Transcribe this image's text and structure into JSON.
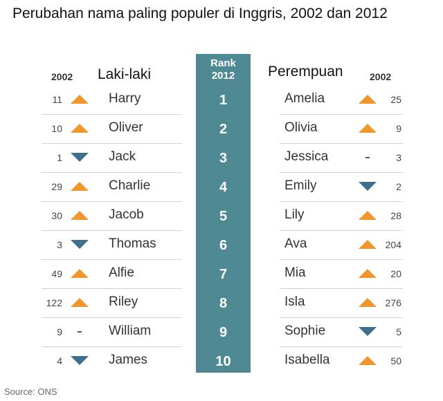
{
  "title": "Perubahan nama paling populer di Inggris, 2002 dan 2012",
  "headers": {
    "boys_year": "2002",
    "boys_label": "Laki-laki",
    "rank_line1": "Rank",
    "rank_line2": "2012",
    "girls_label": "Perempuan",
    "girls_year": "2002"
  },
  "colors": {
    "up": "#f0962e",
    "down": "#3e6f8e",
    "rank_bg": "#4f8993"
  },
  "chart_data": {
    "type": "table",
    "title": "Perubahan nama paling populer di Inggris, 2002 dan 2012",
    "ranks": [
      "1",
      "2",
      "3",
      "4",
      "5",
      "6",
      "7",
      "8",
      "9",
      "10"
    ],
    "boys": [
      {
        "name": "Harry",
        "rank_2002": "11",
        "trend": "up"
      },
      {
        "name": "Oliver",
        "rank_2002": "10",
        "trend": "up"
      },
      {
        "name": "Jack",
        "rank_2002": "1",
        "trend": "down"
      },
      {
        "name": "Charlie",
        "rank_2002": "29",
        "trend": "up"
      },
      {
        "name": "Jacob",
        "rank_2002": "30",
        "trend": "up"
      },
      {
        "name": "Thomas",
        "rank_2002": "3",
        "trend": "down"
      },
      {
        "name": "Alfie",
        "rank_2002": "49",
        "trend": "up"
      },
      {
        "name": "Riley",
        "rank_2002": "122",
        "trend": "up"
      },
      {
        "name": "William",
        "rank_2002": "9",
        "trend": "same"
      },
      {
        "name": "James",
        "rank_2002": "4",
        "trend": "down"
      }
    ],
    "girls": [
      {
        "name": "Amelia",
        "rank_2002": "25",
        "trend": "up"
      },
      {
        "name": "Olivia",
        "rank_2002": "9",
        "trend": "up"
      },
      {
        "name": "Jessica",
        "rank_2002": "3",
        "trend": "same"
      },
      {
        "name": "Emily",
        "rank_2002": "2",
        "trend": "down"
      },
      {
        "name": "Lily",
        "rank_2002": "28",
        "trend": "up"
      },
      {
        "name": "Ava",
        "rank_2002": "204",
        "trend": "up"
      },
      {
        "name": "Mia",
        "rank_2002": "20",
        "trend": "up"
      },
      {
        "name": "Isla",
        "rank_2002": "276",
        "trend": "up"
      },
      {
        "name": "Sophie",
        "rank_2002": "5",
        "trend": "down"
      },
      {
        "name": "Isabella",
        "rank_2002": "50",
        "trend": "up"
      }
    ]
  },
  "source": "Source: ONS"
}
